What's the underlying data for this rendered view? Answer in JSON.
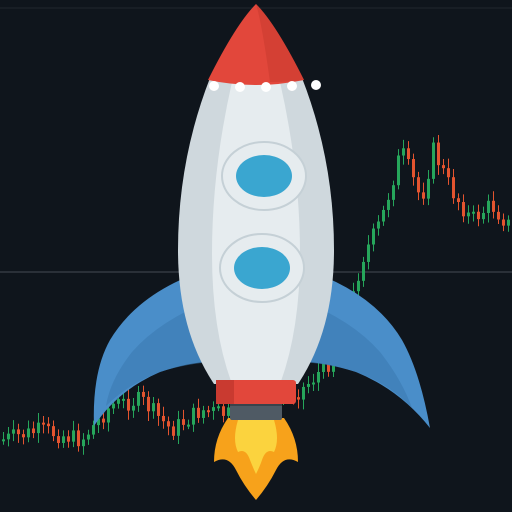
{
  "colors": {
    "background": "#0f151c",
    "grid_line": "#2a3038",
    "candle_up": "#26a65b",
    "candle_down": "#e4542f",
    "rocket_body": "#cfd8dd",
    "rocket_body_light": "#e6ecef",
    "rocket_nose": "#e2473b",
    "rocket_wing": "#4a8ec9",
    "rocket_window_ring": "#e6ecef",
    "rocket_window": "#3aa6d0",
    "flame_outer": "#f7a21b",
    "flame_inner": "#fbd33e"
  },
  "icons": {
    "main": "rocket-icon",
    "background": "candlestick-chart"
  }
}
